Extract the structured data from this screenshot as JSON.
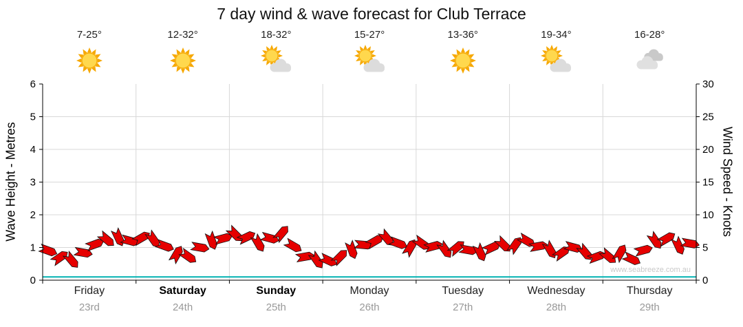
{
  "title": "7 day wind & wave forecast for Club Terrace",
  "watermark": "www.seabreeze.com.au",
  "days": [
    {
      "label": "Friday",
      "date": "23rd",
      "temp": "7-25°",
      "icon": "sunny",
      "weekend": false
    },
    {
      "label": "Saturday",
      "date": "24th",
      "temp": "12-32°",
      "icon": "sunny",
      "weekend": true
    },
    {
      "label": "Sunday",
      "date": "25th",
      "temp": "18-32°",
      "icon": "sun-cloud",
      "weekend": true
    },
    {
      "label": "Monday",
      "date": "26th",
      "temp": "15-27°",
      "icon": "sun-cloud",
      "weekend": false
    },
    {
      "label": "Tuesday",
      "date": "27th",
      "temp": "13-36°",
      "icon": "sunny",
      "weekend": false
    },
    {
      "label": "Wednesday",
      "date": "28th",
      "temp": "19-34°",
      "icon": "sun-cloud",
      "weekend": false
    },
    {
      "label": "Thursday",
      "date": "29th",
      "temp": "16-28°",
      "icon": "cloudy",
      "weekend": false
    }
  ],
  "chart_data": {
    "type": "line",
    "title": "7 day wind & wave forecast for Club Terrace",
    "categories": [
      "Friday 23rd",
      "Saturday 24th",
      "Sunday 25th",
      "Monday 26th",
      "Tuesday 27th",
      "Wednesday 28th",
      "Thursday 29th"
    ],
    "samples_per_day": 8,
    "grid": true,
    "left_axis": {
      "label": "Wave Height - Metres",
      "min": 0,
      "max": 6,
      "ticks": [
        0,
        1,
        2,
        3,
        4,
        5,
        6
      ]
    },
    "right_axis": {
      "label": "Wind Speed - Knots",
      "min": 0,
      "max": 30,
      "ticks": [
        0,
        5,
        10,
        15,
        20,
        25,
        30
      ]
    },
    "series": [
      {
        "name": "Wind Speed",
        "unit": "knots",
        "axis": "right",
        "style": "wind-arrows",
        "color": "#e60000",
        "values": [
          4.5,
          3.5,
          3.0,
          4.2,
          5.5,
          6.2,
          6.5,
          6.0,
          6.5,
          6.2,
          5.2,
          4.0,
          3.6,
          5.0,
          6.0,
          6.4,
          7.0,
          6.6,
          5.6,
          6.4,
          7.2,
          5.2,
          3.6,
          3.0,
          3.0,
          3.6,
          4.6,
          5.4,
          6.0,
          6.4,
          5.6,
          5.0,
          5.6,
          5.2,
          4.6,
          5.0,
          4.6,
          4.2,
          5.0,
          5.4,
          5.4,
          6.0,
          5.2,
          4.6,
          4.2,
          5.0,
          4.2,
          3.6,
          3.6,
          4.2,
          3.2,
          4.6,
          6.0,
          6.4,
          5.2,
          5.6
        ],
        "directions_deg": [
          20,
          -35,
          50,
          10,
          -20,
          40,
          65,
          15,
          -30,
          55,
          20,
          -60,
          35,
          10,
          70,
          -15,
          45,
          -25,
          60,
          15,
          -50,
          30,
          -10,
          55,
          25,
          -45,
          70,
          5,
          -30,
          50,
          20,
          -60,
          35,
          -15,
          55,
          -40,
          10,
          65,
          -25,
          45,
          -55,
          30,
          -10,
          60,
          -35,
          15,
          50,
          -20,
          40,
          -60,
          25,
          -15,
          55,
          -30,
          65,
          10
        ]
      },
      {
        "name": "Wave Height",
        "unit": "metres",
        "axis": "left",
        "style": "line",
        "color": "#00b2b2",
        "constant_value": 0.1
      }
    ]
  }
}
